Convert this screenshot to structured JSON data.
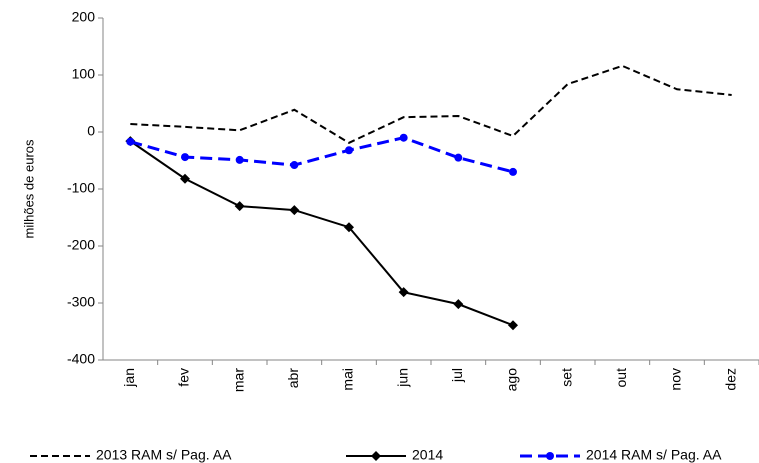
{
  "chart_data": {
    "type": "line",
    "y_label": "milhões de euros",
    "categories": [
      "jan",
      "fev",
      "mar",
      "abr",
      "mai",
      "jun",
      "jul",
      "ago",
      "set",
      "out",
      "nov",
      "dez"
    ],
    "series": [
      {
        "name": "2013 RAM s/ Pag. AA",
        "color": "#000000",
        "line_style": "dashed",
        "marker": "none",
        "values": [
          14,
          9,
          3,
          39,
          -19,
          26,
          28,
          -7,
          84,
          116,
          75,
          65
        ]
      },
      {
        "name": "2014",
        "color": "#000000",
        "line_style": "solid",
        "marker": "diamond",
        "values": [
          -16,
          -82,
          -130,
          -137,
          -167,
          -281,
          -302,
          -339,
          null,
          null,
          null,
          null
        ]
      },
      {
        "name": "2014 RAM s/ Pag. AA",
        "color": "#0000ff",
        "line_style": "dashed",
        "marker": "circle",
        "values": [
          -17,
          -44,
          -49,
          -58,
          -32,
          -10,
          -45,
          -70,
          null,
          null,
          null,
          null
        ]
      }
    ],
    "ylim": [
      -400,
      200
    ],
    "yticks": [
      -400,
      -300,
      -200,
      -100,
      0,
      100,
      200
    ],
    "grid": false,
    "legend": "bottom"
  }
}
